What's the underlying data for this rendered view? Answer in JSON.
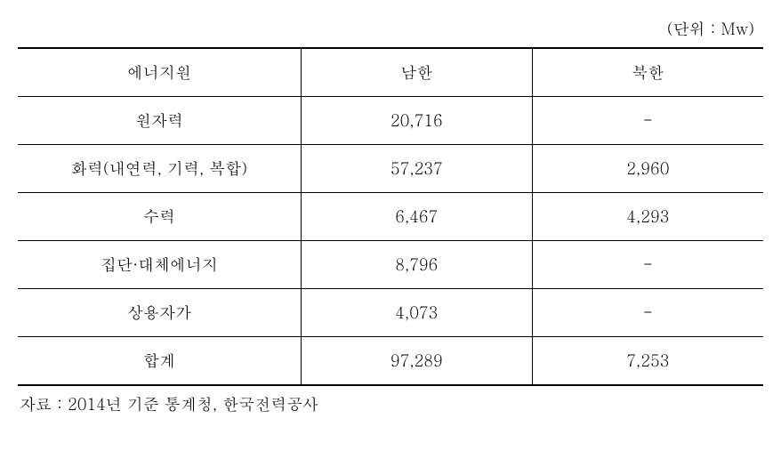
{
  "unit_label": "(단위 : Mw)",
  "table": {
    "columns": [
      "에너지원",
      "남한",
      "북한"
    ],
    "rows": [
      [
        "원자력",
        "20,716",
        "-"
      ],
      [
        "화력(내연력, 기력, 복합)",
        "57,237",
        "2,960"
      ],
      [
        "수력",
        "6,467",
        "4,293"
      ],
      [
        "집단·대체에너지",
        "8,796",
        "-"
      ],
      [
        "상용자가",
        "4,073",
        "-"
      ],
      [
        "합계",
        "97,289",
        "7,253"
      ]
    ],
    "column_widths": [
      "38%",
      "31%",
      "31%"
    ],
    "border_color": "#000000",
    "background_color": "#ffffff",
    "font_size": 18,
    "cell_padding": "14px 10px"
  },
  "source_label": "자료 : 2014년 기준 통계청, 한국전력공사"
}
